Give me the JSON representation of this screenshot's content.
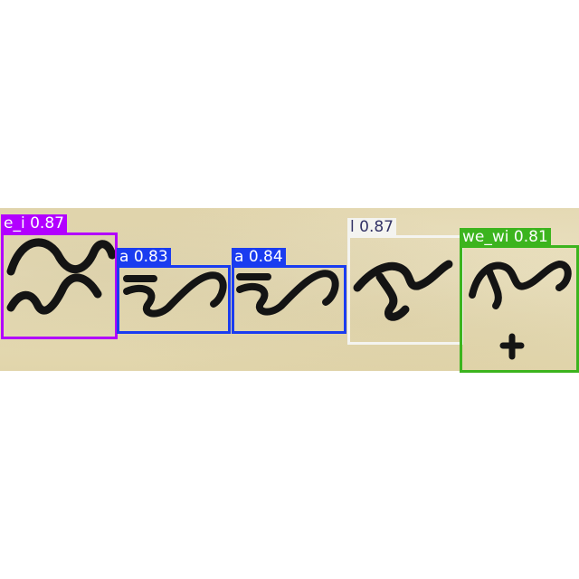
{
  "detections": [
    {
      "class_label": "e_i",
      "confidence": "0.87",
      "color": "#b200ff",
      "text_color": "#ffffff"
    },
    {
      "class_label": "a",
      "confidence": "0.83",
      "color": "#1a3cf0",
      "text_color": "#ffffff"
    },
    {
      "class_label": "a",
      "confidence": "0.84",
      "color": "#1a3cf0",
      "text_color": "#ffffff"
    },
    {
      "class_label": "l",
      "confidence": "0.87",
      "color": "#f4f4f0",
      "text_color": "#333366"
    },
    {
      "class_label": "we_wi",
      "confidence": "0.81",
      "color": "#3cb41e",
      "text_color": "#ffffff"
    }
  ]
}
